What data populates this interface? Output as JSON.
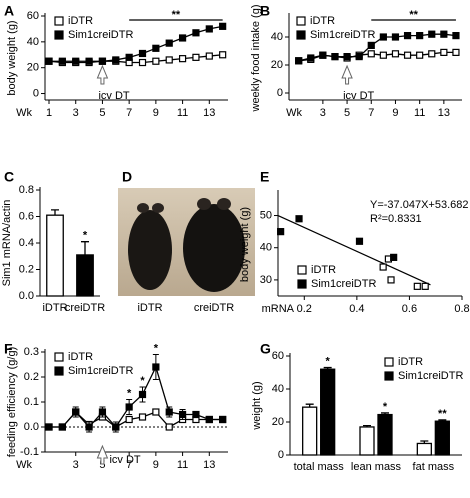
{
  "chart_data": [
    {
      "type": "line",
      "letter": "A",
      "ylabel": "body weight (g)",
      "xlabel": "Wk",
      "x": [
        1,
        2,
        3,
        4,
        5,
        6,
        7,
        8,
        9,
        10,
        11,
        12,
        13,
        14
      ],
      "xlim": [
        0.7,
        14.4
      ],
      "xticks": [
        1,
        3,
        5,
        7,
        9,
        11,
        13
      ],
      "ylim": [
        -5,
        60
      ],
      "yticks": [
        0,
        20,
        40,
        60
      ],
      "legend": "upper left",
      "series": [
        {
          "name": "iDTR",
          "color": "#ffffff",
          "values": [
            25,
            24,
            24,
            24,
            25,
            25,
            24,
            24,
            25,
            26,
            27,
            28,
            29,
            30
          ]
        },
        {
          "name": "Sim1creiDTR",
          "color": "#000000",
          "values": [
            25,
            25,
            25,
            25,
            25,
            26,
            28,
            31,
            35,
            39,
            43,
            47,
            50,
            52
          ]
        }
      ],
      "significance": {
        "x": [
          7,
          14
        ],
        "text": "**"
      },
      "icv_dt": {
        "x": 5,
        "text": "icv DT"
      }
    },
    {
      "type": "line",
      "letter": "B",
      "ylabel": "weekly food intake (g)",
      "xlabel": "Wk",
      "x": [
        1,
        2,
        3,
        4,
        5,
        6,
        7,
        8,
        9,
        10,
        11,
        12,
        13,
        14
      ],
      "xlim": [
        0.2,
        14.5
      ],
      "xticks": [
        3,
        5,
        7,
        9,
        11,
        13
      ],
      "ylim": [
        -5,
        55
      ],
      "yticks": [
        0,
        20,
        40
      ],
      "legend": "upper left",
      "series": [
        {
          "name": "iDTR",
          "color": "#ffffff",
          "values": [
            23,
            24,
            27,
            26,
            25,
            27,
            28,
            27,
            28,
            27,
            27,
            28,
            29,
            29
          ]
        },
        {
          "name": "Sim1creiDTR",
          "color": "#000000",
          "values": [
            23,
            25,
            27,
            26,
            26,
            26,
            34,
            40,
            40,
            41,
            41,
            42,
            42,
            41
          ],
          "errors": [
            1,
            1,
            1,
            1,
            1,
            1,
            2,
            1,
            1,
            1,
            2,
            2,
            2,
            2
          ]
        }
      ],
      "significance": {
        "x": [
          7,
          14
        ],
        "text": "**"
      },
      "icv_dt": {
        "x": 5,
        "text": "icv DT"
      }
    },
    {
      "type": "bar",
      "letter": "C",
      "ylabel": "Sim1 mRNA/actin",
      "categories": [
        "iDTR",
        "creiDTR"
      ],
      "values": [
        0.61,
        0.31
      ],
      "errors": [
        0.04,
        0.1
      ],
      "colors": [
        "#ffffff",
        "#000000"
      ],
      "ylim": [
        0,
        0.8
      ],
      "yticks": [
        {
          "value": 0,
          "label": "0.0"
        },
        0.2,
        0.4,
        0.6,
        0.8
      ],
      "significance": [
        {
          "category": "creiDTR",
          "text": "*"
        }
      ]
    },
    {
      "type": "image",
      "letter": "D",
      "labels": [
        "iDTR",
        "creiDTR"
      ]
    },
    {
      "type": "scatter",
      "letter": "E",
      "ylabel": "body weight (g)",
      "xlabel": "mRNA",
      "xlim": [
        0.1,
        0.8
      ],
      "xticks": [
        0.2,
        0.4,
        0.6,
        0.8
      ],
      "ylim": [
        25,
        57
      ],
      "yticks": [
        30,
        40,
        50
      ],
      "legend": "lower left",
      "series": [
        {
          "name": "iDTR",
          "color": "#ffffff",
          "x": [
            0.5,
            0.52,
            0.53,
            0.63,
            0.66
          ],
          "values": [
            34,
            36.5,
            30,
            28,
            28
          ]
        },
        {
          "name": "Sim1creiDTR",
          "color": "#000000",
          "x": [
            0.11,
            0.18,
            0.41,
            0.54
          ],
          "values": [
            45,
            49,
            42,
            37
          ]
        }
      ],
      "fit": {
        "x": [
          0.1,
          0.68
        ],
        "values": [
          49.98,
          28.49
        ]
      },
      "equation": "Y=-37.047X+53.682",
      "r2": "R²=0.8331"
    },
    {
      "type": "line",
      "letter": "F",
      "ylabel": "feeding efficiency (g/g)",
      "xlabel": "Wk",
      "x": [
        1,
        2,
        3,
        4,
        5,
        6,
        7,
        8,
        9,
        10,
        11,
        12,
        13,
        14
      ],
      "xlim": [
        0.7,
        14.4
      ],
      "xticks": [
        3,
        5,
        7,
        9,
        11,
        13
      ],
      "ylim": [
        -0.1,
        0.3
      ],
      "yticks": [
        -0.1,
        {
          "value": 0,
          "label": "0.0"
        },
        0.1,
        0.2,
        0.3
      ],
      "legend": "upper left",
      "reference_line": 0,
      "series": [
        {
          "name": "iDTR",
          "color": "#ffffff",
          "values": [
            0,
            0,
            0.06,
            0.01,
            0.04,
            0,
            0.03,
            0.04,
            0.06,
            0,
            0.03,
            0.03,
            0.03,
            0.03
          ]
        },
        {
          "name": "Sim1creiDTR",
          "color": "#000000",
          "values": [
            0,
            0,
            0.06,
            0,
            0.06,
            0,
            0.08,
            0.13,
            0.24,
            0.06,
            0.05,
            0.05,
            0.03,
            0.03
          ],
          "errors": [
            0.01,
            0.01,
            0.02,
            0.02,
            0.02,
            0.02,
            0.03,
            0.03,
            0.05,
            0.02,
            0.02,
            0.01,
            0.01,
            0.01
          ]
        }
      ],
      "significance": [
        {
          "x": 7,
          "text": "*"
        },
        {
          "x": 8,
          "text": "*"
        },
        {
          "x": 9,
          "text": "*"
        }
      ],
      "icv_dt": {
        "x": 5,
        "text": "icv DT"
      }
    },
    {
      "type": "bar",
      "letter": "G",
      "ylabel": "weight (g)",
      "categories": [
        "total mass",
        "lean mass",
        "fat mass"
      ],
      "ylim": [
        0,
        60
      ],
      "yticks": [
        0,
        20,
        40,
        60
      ],
      "legend": "upper right",
      "series": [
        {
          "name": "iDTR",
          "color": "#ffffff",
          "values": [
            29,
            17,
            7
          ],
          "errors": [
            1.8,
            0.8,
            1.5
          ]
        },
        {
          "name": "Sim1creiDTR",
          "color": "#000000",
          "values": [
            52,
            24.5,
            20.5
          ],
          "errors": [
            1,
            1,
            0.8
          ]
        }
      ],
      "significance": [
        {
          "category": "total mass",
          "text": "*"
        },
        {
          "category": "lean mass",
          "text": "*"
        },
        {
          "category": "fat mass",
          "text": "**"
        }
      ]
    }
  ]
}
